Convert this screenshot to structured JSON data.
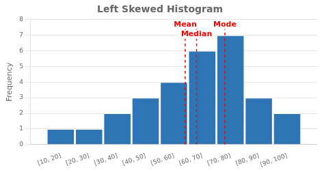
{
  "chart_data": {
    "type": "histogram",
    "title": "Left Skewed Histogram",
    "ylabel": "Frequency",
    "bins": [
      10,
      20,
      30,
      40,
      50,
      60,
      70,
      80,
      90,
      100
    ],
    "categories": [
      "[10, 20]",
      "[20, 30]",
      "[30, 40]",
      "[40, 50]",
      "[50, 60]",
      "[60, 70]",
      "[70, 80]",
      "[80, 90]",
      "[90, 100]"
    ],
    "values": [
      1,
      1,
      2,
      3,
      4,
      6,
      7,
      3,
      2
    ],
    "color": "#2E75B6",
    "xlim": [
      10,
      100
    ],
    "ylim": [
      0,
      8
    ],
    "yticks": [
      0,
      1,
      2,
      3,
      4,
      5,
      6,
      7,
      8
    ],
    "grid": true,
    "annotations": [
      {
        "x": 59,
        "label": "Mean",
        "color": "#FF0000",
        "line_style": "dashed"
      },
      {
        "x": 63,
        "label": "Median",
        "color": "#FF0000",
        "line_style": "dashed"
      },
      {
        "x": 73,
        "label": "Mode",
        "color": "#FF0000",
        "line_style": "dashed"
      }
    ]
  }
}
